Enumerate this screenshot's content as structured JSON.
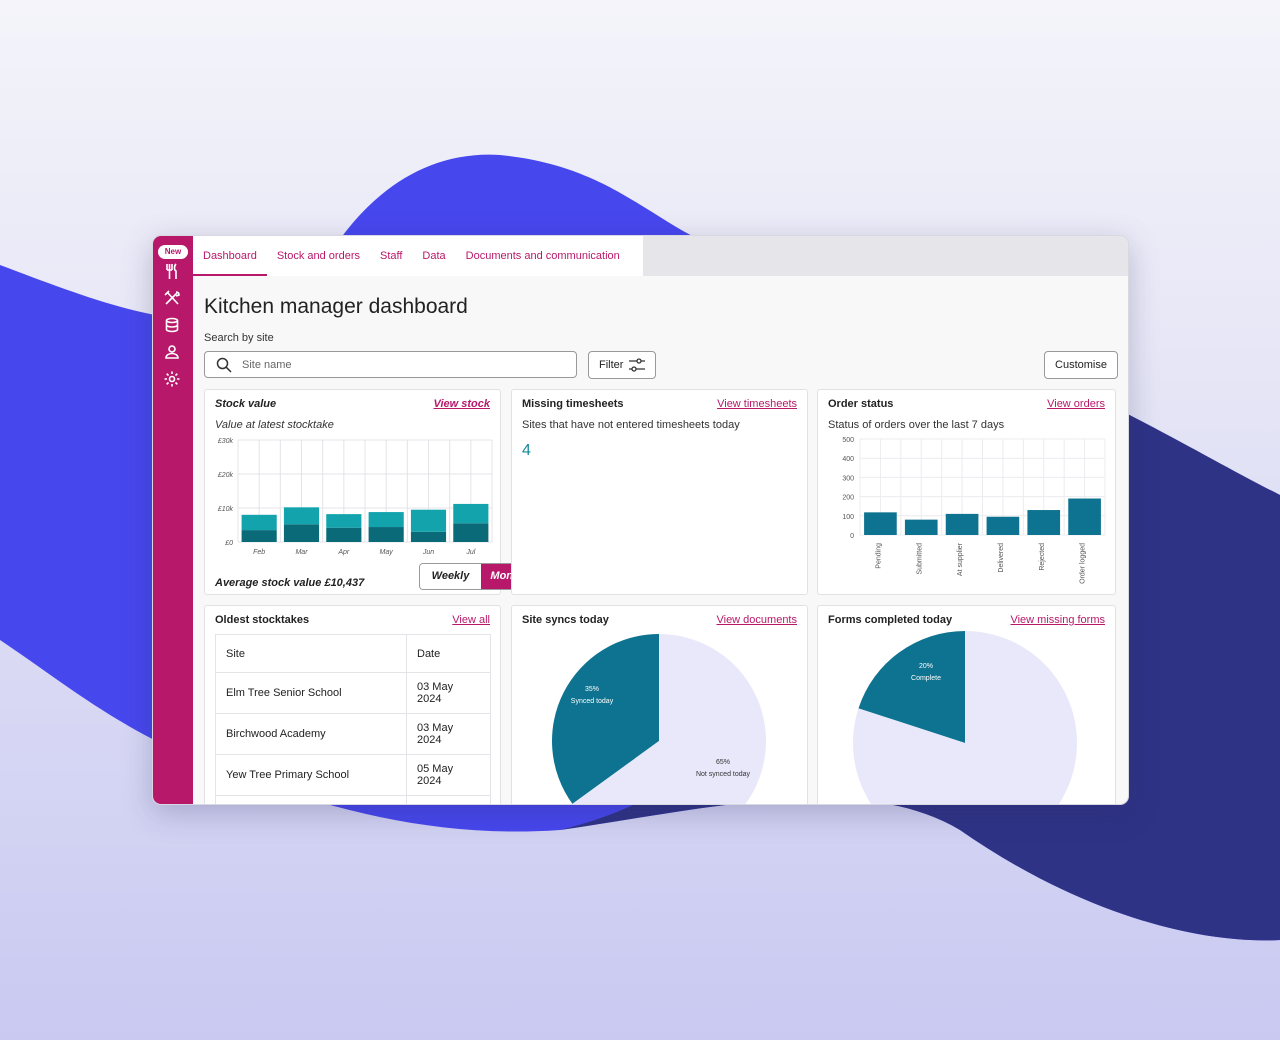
{
  "nav": {
    "new_badge": "New",
    "icons": [
      "cutlery-icon",
      "utensils-cross-icon",
      "database-icon",
      "user-icon",
      "settings-icon"
    ]
  },
  "tabs": [
    "Dashboard",
    "Stock and orders",
    "Staff",
    "Data",
    "Documents and communication"
  ],
  "page": {
    "title": "Kitchen manager dashboard",
    "search_label": "Search by site",
    "search_placeholder": "Site name",
    "filter_label": "Filter",
    "customise_label": "Customise"
  },
  "stock_value": {
    "title": "Stock value",
    "link": "View stock",
    "subtitle": "Value at latest stocktake",
    "average": "Average stock value £10,437",
    "toggle": [
      "Weekly",
      "Monthly"
    ],
    "selected": "Monthly"
  },
  "missing_timesheets": {
    "title": "Missing timesheets",
    "link": "View timesheets",
    "subtitle": "Sites that have not entered timesheets today",
    "count": "4"
  },
  "order_status": {
    "title": "Order status",
    "link": "View orders",
    "subtitle": "Status of orders over the last 7 days"
  },
  "oldest_stocktakes": {
    "title": "Oldest stocktakes",
    "link": "View all",
    "headers": [
      "Site",
      "Date"
    ],
    "rows": [
      [
        "Elm Tree Senior School",
        "03 May 2024"
      ],
      [
        "Birchwood Academy",
        "03 May 2024"
      ],
      [
        "Yew Tree Primary School",
        "05 May 2024"
      ]
    ]
  },
  "site_syncs": {
    "title": "Site syncs today",
    "link": "View documents"
  },
  "forms_completed": {
    "title": "Forms completed today",
    "link": "View missing forms"
  },
  "colors": {
    "brand": "#b8186a",
    "teal_dark": "#0a6a78",
    "teal_light": "#12a3ad",
    "teal_mid": "#0e7390",
    "lavender": "#e8e8fa"
  },
  "chart_data": [
    {
      "type": "bar",
      "categories": [
        "Feb",
        "Mar",
        "Apr",
        "May",
        "Jun",
        "Jul"
      ],
      "series": [
        {
          "values": [
            3500,
            5200,
            4200,
            4400,
            3000,
            5500
          ]
        },
        {
          "values": [
            4500,
            5000,
            4000,
            4400,
            6500,
            5700
          ]
        }
      ],
      "stacked": true,
      "ylim": [
        0,
        30000
      ],
      "yticks": [
        "£0",
        "£10k",
        "£20k",
        "£30k"
      ],
      "grid": true
    },
    {
      "type": "bar",
      "categories": [
        "Pending",
        "Submitted",
        "At supplier",
        "Delivered",
        "Rejected",
        "Order logged"
      ],
      "values": [
        118,
        80,
        110,
        95,
        130,
        190
      ],
      "ylim": [
        0,
        500
      ],
      "yticks": [
        "0",
        "100",
        "200",
        "300",
        "400",
        "500"
      ],
      "grid": true
    },
    {
      "type": "pie",
      "slices": [
        {
          "pct": "35%",
          "label": "Synced today",
          "value": 35
        },
        {
          "pct": "65%",
          "label": "Not synced today",
          "value": 65
        }
      ]
    },
    {
      "type": "pie",
      "slices": [
        {
          "pct": "20%",
          "label": "Complete",
          "value": 20
        },
        {
          "value": 80
        }
      ]
    }
  ]
}
